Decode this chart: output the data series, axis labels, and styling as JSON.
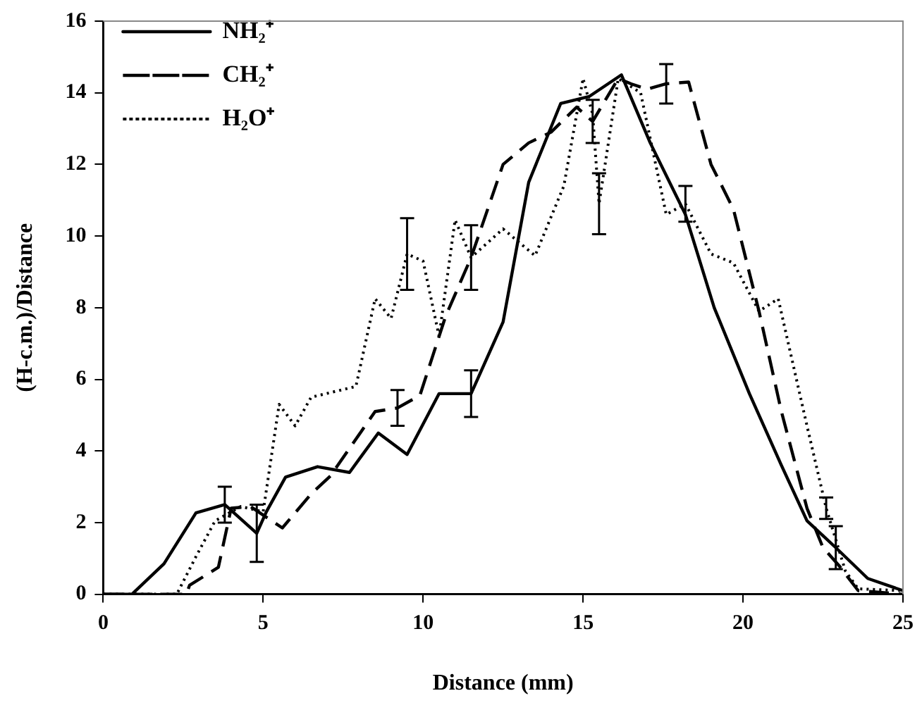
{
  "chart_data": {
    "type": "line",
    "xlabel": "Distance (mm)",
    "ylabel": "(H-c.m.)/Distance",
    "xlim": [
      0,
      25
    ],
    "xticks": [
      0,
      5,
      10,
      15,
      20,
      25
    ],
    "ylim": [
      0,
      16
    ],
    "yticks": [
      0,
      2,
      4,
      6,
      8,
      10,
      12,
      14,
      16
    ],
    "grid": false,
    "legend": "top left",
    "marker": "none",
    "series": [
      {
        "name": "NH₂⁺",
        "color": "#000000",
        "line_style": "solid",
        "x": [
          0,
          0.9,
          1.9,
          2.9,
          3.8,
          4.8,
          5.1,
          5.7,
          6.7,
          7.7,
          8.6,
          9.5,
          10.5,
          11.5,
          12.5,
          13.3,
          14.3,
          15.2,
          16.2,
          17.1,
          18.2,
          19.1,
          20.2,
          21.2,
          22.0,
          22.9,
          23.9,
          25
        ],
        "values": [
          0,
          0,
          0.85,
          2.27,
          2.5,
          1.7,
          2.3,
          3.27,
          3.56,
          3.4,
          4.5,
          3.9,
          5.6,
          5.6,
          7.6,
          11.5,
          13.7,
          13.9,
          14.5,
          12.6,
          10.6,
          8.0,
          5.6,
          3.6,
          2.05,
          1.3,
          0.44,
          0.1
        ],
        "errors": [
          null,
          null,
          null,
          null,
          0.5,
          0.8,
          null,
          null,
          null,
          null,
          null,
          null,
          null,
          0.65,
          null,
          null,
          null,
          null,
          null,
          null,
          null,
          null,
          null,
          null,
          null,
          0.6,
          null,
          null
        ]
      },
      {
        "name": "CH₂⁺",
        "color": "#000000",
        "line_style": "dashed",
        "x": [
          0,
          2.6,
          2.7,
          3.6,
          4.0,
          4.6,
          5.6,
          6.5,
          7.1,
          8.5,
          9.2,
          9.9,
          10.7,
          11.5,
          12.5,
          13.3,
          14.0,
          14.8,
          15.3,
          16.1,
          16.5,
          17.0,
          17.6,
          18.3,
          19.0,
          19.7,
          20.5,
          21.2,
          22.0,
          22.5,
          23.0,
          23.6,
          25
        ],
        "values": [
          0,
          0,
          0.25,
          0.75,
          2.4,
          2.45,
          1.85,
          2.8,
          3.3,
          5.1,
          5.2,
          5.55,
          7.75,
          9.4,
          12.0,
          12.6,
          12.9,
          13.6,
          13.2,
          14.4,
          14.25,
          14.1,
          14.25,
          14.3,
          12.0,
          10.75,
          7.9,
          5.1,
          2.4,
          1.3,
          0.8,
          0.1,
          0
        ],
        "errors": [
          null,
          null,
          null,
          null,
          null,
          null,
          null,
          null,
          null,
          null,
          0.5,
          null,
          null,
          0.9,
          null,
          null,
          null,
          null,
          0.6,
          null,
          null,
          null,
          0.55,
          null,
          null,
          null,
          null,
          null,
          null,
          null,
          null,
          null,
          null
        ]
      },
      {
        "name": "H₂O⁺",
        "color": "#000000",
        "line_style": "dotted",
        "x": [
          0,
          2.3,
          2.9,
          3.5,
          4.3,
          5.0,
          5.5,
          6.0,
          6.5,
          7.9,
          8.5,
          9.0,
          9.5,
          10.0,
          10.5,
          11.0,
          11.5,
          12.5,
          13.5,
          14.4,
          15.0,
          15.3,
          15.5,
          16.1,
          16.8,
          17.6,
          18.2,
          19.0,
          19.7,
          20.5,
          21.1,
          22.0,
          22.6,
          23.2,
          23.6,
          25
        ],
        "values": [
          0,
          0,
          1.05,
          2.05,
          2.45,
          2.3,
          5.3,
          4.7,
          5.5,
          5.8,
          8.25,
          7.7,
          9.5,
          9.3,
          7.2,
          10.45,
          9.4,
          10.2,
          9.45,
          11.4,
          14.4,
          13.4,
          10.9,
          14.4,
          14.0,
          10.6,
          10.9,
          9.5,
          9.25,
          7.9,
          8.25,
          4.7,
          2.4,
          0.65,
          0.15,
          0.1
        ],
        "errors": [
          null,
          null,
          null,
          null,
          null,
          null,
          null,
          null,
          null,
          null,
          null,
          null,
          1.0,
          null,
          null,
          null,
          null,
          null,
          null,
          null,
          null,
          null,
          0.85,
          null,
          null,
          null,
          0.5,
          null,
          null,
          null,
          null,
          null,
          0.3,
          null,
          null,
          null
        ]
      }
    ]
  }
}
